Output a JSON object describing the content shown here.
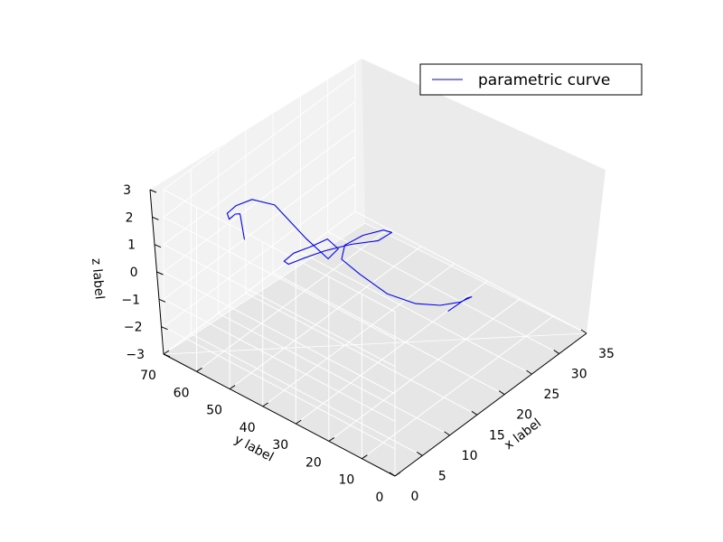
{
  "chart_data": {
    "type": "line",
    "projection": "3d",
    "title": "",
    "xlabel": "x label",
    "ylabel": "y label",
    "zlabel": "z label",
    "xlim": [
      0,
      35
    ],
    "ylim": [
      0,
      70
    ],
    "zlim": [
      -3,
      3
    ],
    "x_ticks": [
      "0",
      "5",
      "10",
      "15",
      "20",
      "25",
      "30",
      "35"
    ],
    "y_ticks": [
      "0",
      "10",
      "20",
      "30",
      "40",
      "50",
      "60",
      "70"
    ],
    "z_ticks": [
      "−3",
      "−2",
      "−1",
      "0",
      "1",
      "2",
      "3"
    ],
    "grid": true,
    "legend_position": "upper right",
    "series": [
      {
        "name": "parametric curve",
        "color": "#0000ff",
        "points": [
          [
            26.1,
            27.2,
            -2.6
          ],
          [
            28.2,
            25.0,
            -2.3
          ],
          [
            28.0,
            23.2,
            -2.1
          ],
          [
            26.0,
            23.3,
            -2.0
          ],
          [
            24.2,
            26.4,
            -2.05
          ],
          [
            22.0,
            30.2,
            -1.9
          ],
          [
            19.3,
            34.2,
            -1.4
          ],
          [
            16.5,
            38.0,
            -0.5
          ],
          [
            14.9,
            40.8,
            0.1
          ],
          [
            15.6,
            41.0,
            0.5
          ],
          [
            17.6,
            38.8,
            0.7
          ],
          [
            19.5,
            35.8,
            0.8
          ],
          [
            19.4,
            33.1,
            0.9
          ],
          [
            17.2,
            33.5,
            0.9
          ],
          [
            15.0,
            38.1,
            0.8
          ],
          [
            12.8,
            42.6,
            0.6
          ],
          [
            10.3,
            44.9,
            0.55
          ],
          [
            8.4,
            46.1,
            0.55
          ],
          [
            7.7,
            46.3,
            0.75
          ],
          [
            8.6,
            44.9,
            1.0
          ],
          [
            10.5,
            42.7,
            1.1
          ],
          [
            12.6,
            41.3,
            1.15
          ],
          [
            13.2,
            39.0,
            0.85
          ],
          [
            10.8,
            38.1,
            0.9
          ],
          [
            8.9,
            41.7,
            1.7
          ],
          [
            7.0,
            48.0,
            2.8
          ],
          [
            5.3,
            52.0,
            3.0
          ],
          [
            3.6,
            54.0,
            2.9
          ],
          [
            2.2,
            54.4,
            2.8
          ],
          [
            1.9,
            53.3,
            2.7
          ],
          [
            2.7,
            52.8,
            2.8
          ],
          [
            3.7,
            53.0,
            2.65
          ],
          [
            2.1,
            49.0,
            2.2
          ]
        ]
      }
    ]
  }
}
